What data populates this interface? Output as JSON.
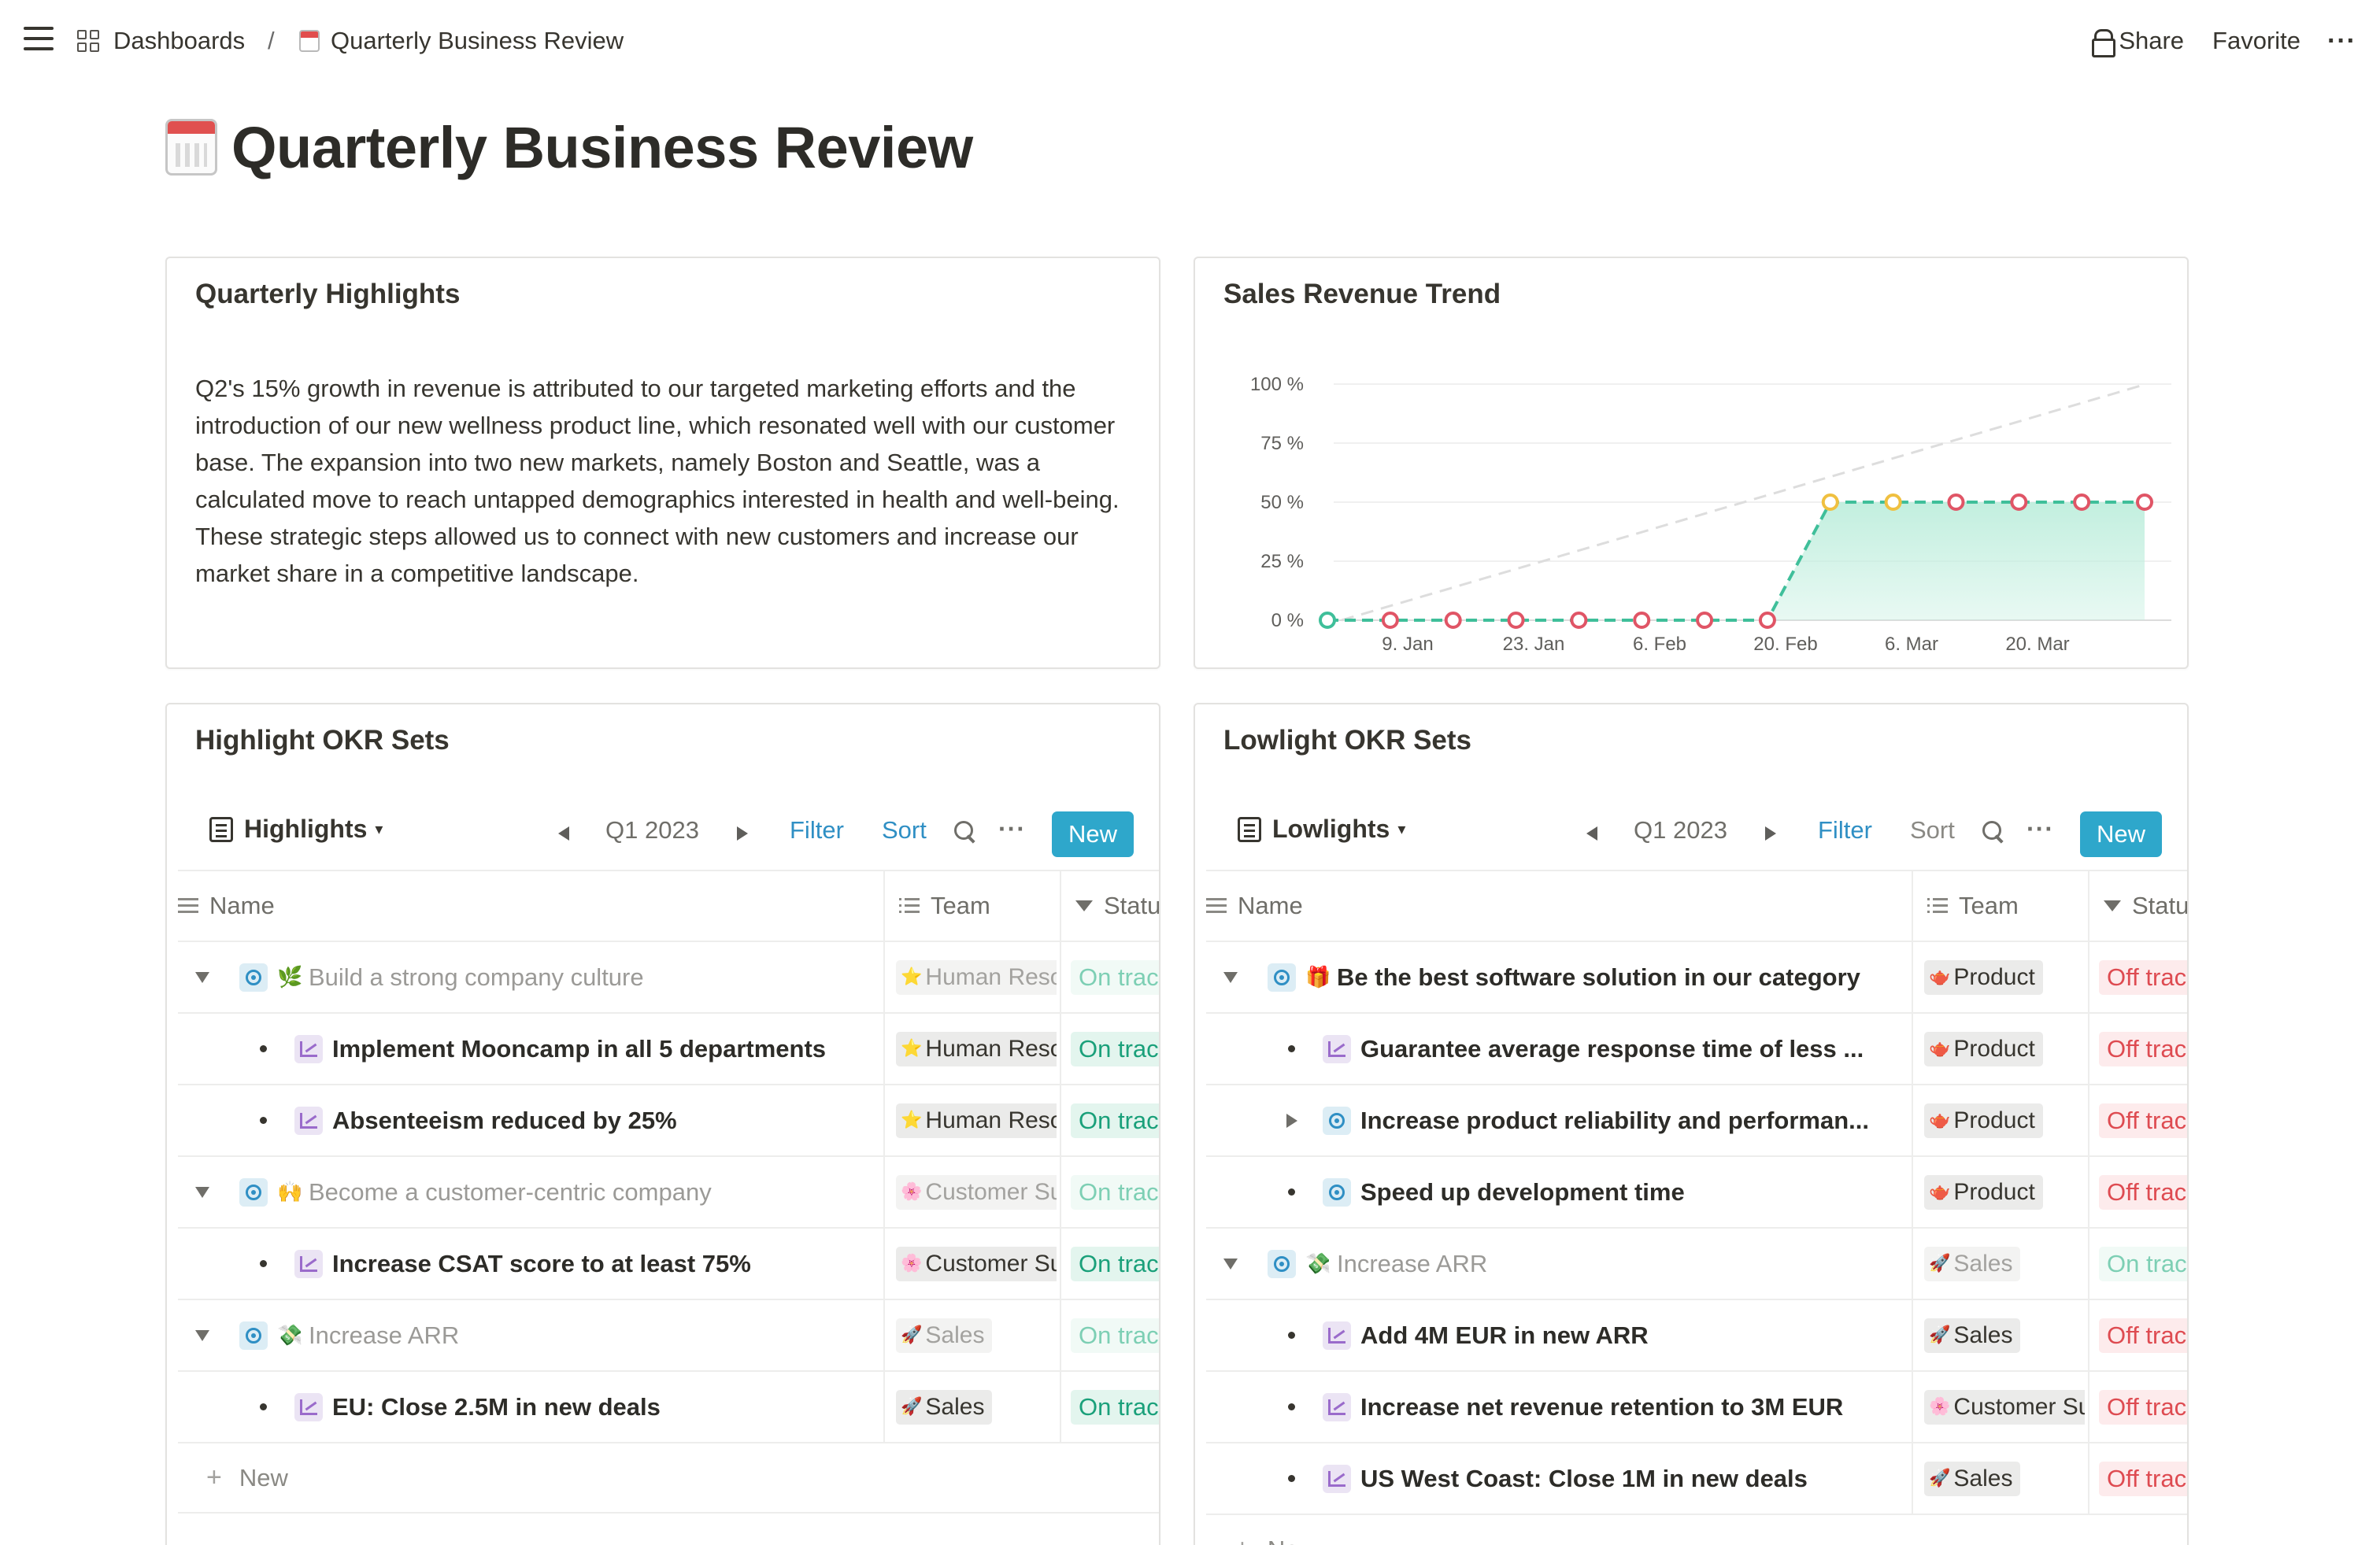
{
  "topbar": {
    "breadcrumb_dashboards": "Dashboards",
    "breadcrumb_sep": "/",
    "breadcrumb_page": "Quarterly Business Review",
    "share": "Share",
    "favorite": "Favorite",
    "more": "···"
  },
  "page": {
    "title": "Quarterly Business Review",
    "icon": "calendar-icon"
  },
  "highlights": {
    "title": "Quarterly Highlights",
    "text": "Q2's 15% growth in revenue is attributed to our targeted marketing efforts and the introduction of our new wellness product line, which resonated well with our customer base. The expansion into two new markets, namely Boston and Seattle, was a calculated move to reach untapped demographics interested in health and well-being. These strategic steps allowed us to connect with new customers and increase our market share in a competitive landscape."
  },
  "trend": {
    "title": "Sales Revenue Trend"
  },
  "chart_data": {
    "type": "area",
    "title": "Sales Revenue Trend",
    "xlabel": "",
    "ylabel": "",
    "y_ticks": [
      "100 %",
      "75 %",
      "50 %",
      "25 %",
      "0 %"
    ],
    "x_ticks": [
      "9. Jan",
      "23. Jan",
      "6. Feb",
      "20. Feb",
      "6. Mar",
      "20. Mar"
    ],
    "ylim": [
      0,
      100
    ],
    "grid": true,
    "series": [
      {
        "values": [
          0,
          0,
          0,
          0,
          0,
          0,
          0,
          0,
          50,
          50,
          50,
          50,
          50,
          50
        ],
        "marker_colors": [
          "#3fbf9a",
          "#e05566",
          "#e05566",
          "#e05566",
          "#e05566",
          "#e05566",
          "#e05566",
          "#e05566",
          "#f0c040",
          "#f0c040",
          "#e05566",
          "#e05566",
          "#e05566",
          "#e05566"
        ],
        "line_color": "#3fbf9a",
        "fill_color": "#bfeedd"
      },
      {
        "values": [
          0,
          100
        ],
        "style": "dashed",
        "line_color": "#dddddd"
      }
    ]
  },
  "okr_high": {
    "title": "Highlight OKR Sets",
    "view": "Highlights",
    "quarter": "Q1 2023",
    "filter": "Filter",
    "sort": "Sort",
    "more": "···",
    "new": "New",
    "col_name": "Name",
    "col_team": "Team",
    "col_status": "Status",
    "rows": [
      {
        "level": "objective",
        "toggle": "down",
        "emoji": "🌿",
        "name": "Build a strong company culture",
        "team": "Human Resources",
        "team_emoji": "⭐",
        "status": "On track",
        "state": "on",
        "muted": true
      },
      {
        "level": "kr",
        "emoji": "",
        "name": "Implement Mooncamp in all 5 departments",
        "team": "Human Resources",
        "team_emoji": "⭐",
        "status": "On track",
        "state": "on",
        "muted": false
      },
      {
        "level": "kr",
        "emoji": "",
        "name": "Absenteeism reduced by 25%",
        "team": "Human Resources",
        "team_emoji": "⭐",
        "status": "On track",
        "state": "on",
        "muted": false
      },
      {
        "level": "objective",
        "toggle": "down",
        "emoji": "🙌",
        "name": "Become a customer-centric company",
        "team": "Customer Success",
        "team_emoji": "🌸",
        "status": "On track",
        "state": "on",
        "muted": true
      },
      {
        "level": "kr",
        "emoji": "",
        "name": "Increase CSAT score to at least 75%",
        "team": "Customer Success",
        "team_emoji": "🌸",
        "status": "On track",
        "state": "on",
        "muted": false
      },
      {
        "level": "objective",
        "toggle": "down",
        "emoji": "💸",
        "name": "Increase ARR",
        "team": "Sales",
        "team_emoji": "🚀",
        "status": "On track",
        "state": "on",
        "muted": true
      },
      {
        "level": "kr",
        "emoji": "",
        "name": "EU: Close 2.5M in new deals",
        "team": "Sales",
        "team_emoji": "🚀",
        "status": "On track",
        "state": "on",
        "muted": false
      }
    ],
    "new_row": "New"
  },
  "okr_low": {
    "title": "Lowlight OKR Sets",
    "view": "Lowlights",
    "quarter": "Q1 2023",
    "filter": "Filter",
    "sort": "Sort",
    "more": "···",
    "new": "New",
    "col_name": "Name",
    "col_team": "Team",
    "col_status": "Status",
    "rows": [
      {
        "level": "objective",
        "toggle": "down",
        "emoji": "🎁",
        "name": "Be the best software solution in our category",
        "team": "Product",
        "team_emoji": "🫖",
        "status": "Off track",
        "state": "off",
        "muted": false
      },
      {
        "level": "kr",
        "emoji": "",
        "name": "Guarantee average response time of less ...",
        "team": "Product",
        "team_emoji": "🫖",
        "status": "Off track",
        "state": "off",
        "muted": false
      },
      {
        "level": "sub-objective",
        "toggle": "right",
        "emoji": "",
        "name": "Increase product reliability and performan...",
        "team": "Product",
        "team_emoji": "🫖",
        "status": "Off track",
        "state": "off",
        "muted": false
      },
      {
        "level": "sub-objective",
        "toggle": "bullet",
        "emoji": "",
        "name": "Speed up development time",
        "team": "Product",
        "team_emoji": "🫖",
        "status": "Off track",
        "state": "off",
        "muted": false
      },
      {
        "level": "objective",
        "toggle": "down",
        "emoji": "💸",
        "name": "Increase ARR",
        "team": "Sales",
        "team_emoji": "🚀",
        "status": "On track",
        "state": "on",
        "muted": true
      },
      {
        "level": "kr",
        "emoji": "",
        "name": "Add 4M EUR in new ARR",
        "team": "Sales",
        "team_emoji": "🚀",
        "status": "Off track",
        "state": "off",
        "muted": false
      },
      {
        "level": "kr",
        "emoji": "",
        "name": "Increase net revenue retention to 3M EUR",
        "team": "Customer Success",
        "team_emoji": "🌸",
        "status": "Off track",
        "state": "off",
        "muted": false
      },
      {
        "level": "kr",
        "emoji": "",
        "name": "US West Coast: Close 1M in new deals",
        "team": "Sales",
        "team_emoji": "🚀",
        "status": "Off track",
        "state": "off",
        "muted": false
      }
    ],
    "new_row": "New"
  }
}
